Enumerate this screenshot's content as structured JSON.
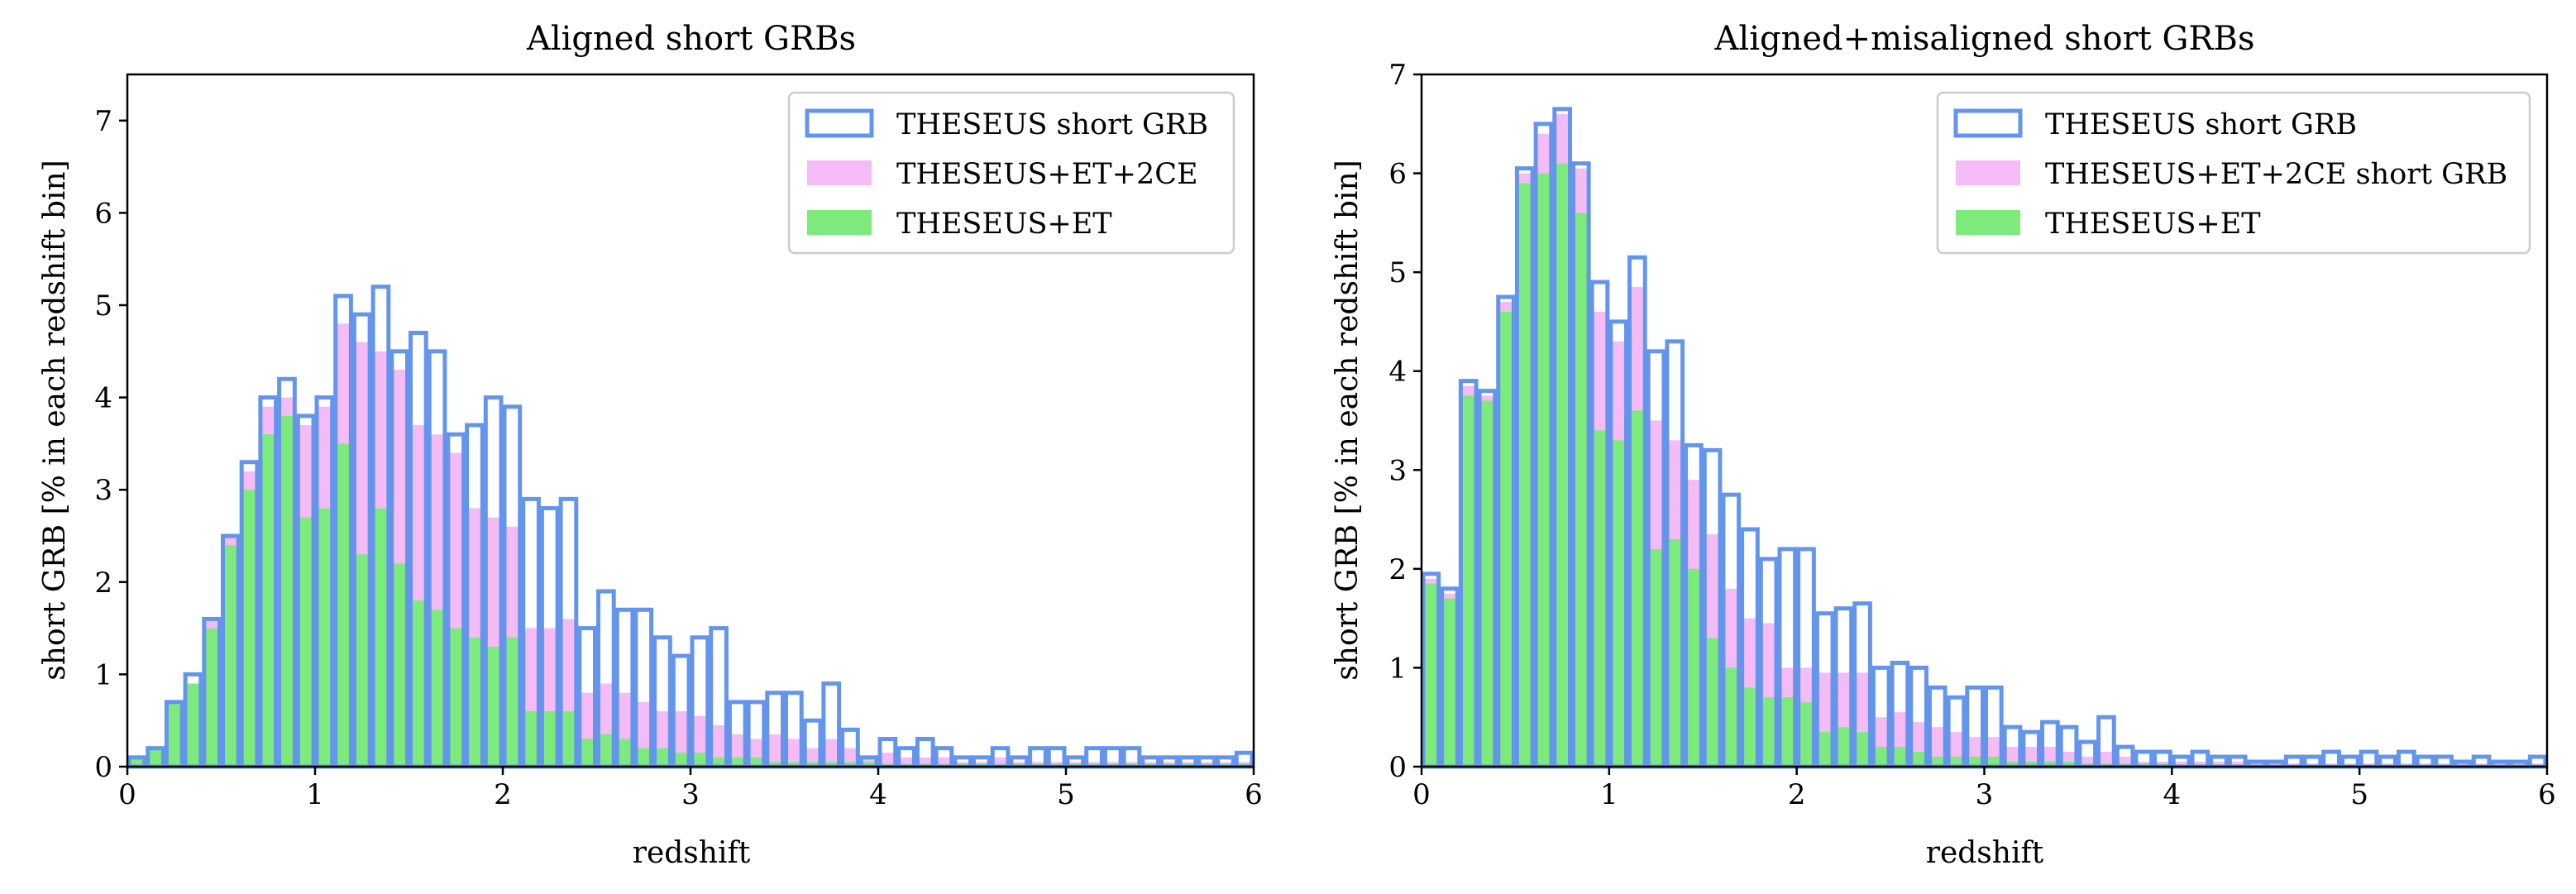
{
  "chart_data": [
    {
      "type": "bar",
      "title": "Aligned short GRBs",
      "xlabel": "redshift",
      "ylabel": "short GRB [% in each redshift bin]",
      "xlim": [
        0,
        6
      ],
      "ylim": [
        0,
        7.5
      ],
      "xticks": [
        0,
        1,
        2,
        3,
        4,
        5,
        6
      ],
      "yticks": [
        0,
        1,
        2,
        3,
        4,
        5,
        6,
        7
      ],
      "bin_width": 0.1,
      "legend_position": "top-right",
      "colors": {
        "theseus": "#6495ED",
        "theseus_et_2ce": "#F4BBF4",
        "theseus_et": "#7CEB7C"
      },
      "series": [
        {
          "key": "theseus",
          "name": "THESEUS short GRB",
          "style": "step",
          "values": [
            0.1,
            0.2,
            0.7,
            1.0,
            1.6,
            2.5,
            3.3,
            4.0,
            4.2,
            3.8,
            4.0,
            5.1,
            4.9,
            5.2,
            4.5,
            4.7,
            4.5,
            3.6,
            3.7,
            4.0,
            3.9,
            2.9,
            2.8,
            2.9,
            1.5,
            1.9,
            1.7,
            1.7,
            1.4,
            1.2,
            1.4,
            1.5,
            0.7,
            0.7,
            0.8,
            0.8,
            0.5,
            0.9,
            0.4,
            0.1,
            0.3,
            0.2,
            0.3,
            0.2,
            0.1,
            0.1,
            0.2,
            0.1,
            0.2,
            0.2,
            0.1,
            0.2,
            0.2,
            0.2,
            0.1,
            0.1,
            0.1,
            0.1,
            0.1,
            0.15
          ]
        },
        {
          "key": "theseus_et_2ce",
          "name": "THESEUS+ET+2CE",
          "style": "fill",
          "values": [
            0.1,
            0.2,
            0.7,
            0.9,
            1.6,
            2.5,
            3.2,
            3.9,
            4.0,
            3.7,
            3.9,
            4.8,
            4.6,
            4.5,
            4.3,
            3.7,
            3.6,
            3.4,
            2.8,
            2.7,
            2.6,
            1.5,
            1.5,
            1.6,
            0.8,
            0.9,
            0.8,
            0.7,
            0.6,
            0.6,
            0.55,
            0.45,
            0.35,
            0.3,
            0.35,
            0.3,
            0.2,
            0.3,
            0.2,
            0.1,
            0.15,
            0.1,
            0.1,
            0.1,
            0.05,
            0.05,
            0.1,
            0.05,
            0.05,
            0.05,
            0.05,
            0.05,
            0.05,
            0.05,
            0.05,
            0.05,
            0.05,
            0.05,
            0.05,
            0.05
          ]
        },
        {
          "key": "theseus_et",
          "name": "THESEUS+ET",
          "style": "fill",
          "values": [
            0.1,
            0.2,
            0.7,
            0.9,
            1.5,
            2.4,
            3.0,
            3.6,
            3.8,
            2.7,
            2.8,
            3.5,
            2.3,
            2.8,
            2.2,
            1.8,
            1.7,
            1.5,
            1.4,
            1.3,
            1.4,
            0.6,
            0.6,
            0.6,
            0.3,
            0.35,
            0.3,
            0.2,
            0.2,
            0.15,
            0.15,
            0.1,
            0.1,
            0.1,
            0.05,
            0.05,
            0.05,
            0.05,
            0.05,
            0.05,
            0.03,
            0.03,
            0.03,
            0.03,
            0.03,
            0.03,
            0.03,
            0.03,
            0.03,
            0.03,
            0.03,
            0.03,
            0.03,
            0.03,
            0.03,
            0.03,
            0.03,
            0.03,
            0.03,
            0.03
          ]
        }
      ]
    },
    {
      "type": "bar",
      "title": "Aligned+misaligned short GRBs",
      "xlabel": "redshift",
      "ylabel": "short GRB [% in each redshift bin]",
      "xlim": [
        0,
        6
      ],
      "ylim": [
        0,
        7
      ],
      "xticks": [
        0,
        1,
        2,
        3,
        4,
        5,
        6
      ],
      "yticks": [
        0,
        1,
        2,
        3,
        4,
        5,
        6,
        7
      ],
      "bin_width": 0.1,
      "legend_position": "top-right",
      "colors": {
        "theseus": "#6495ED",
        "theseus_et_2ce": "#F4BBF4",
        "theseus_et": "#7CEB7C"
      },
      "series": [
        {
          "key": "theseus",
          "name": "THESEUS short GRB",
          "style": "step",
          "values": [
            1.95,
            1.8,
            3.9,
            3.8,
            4.75,
            6.05,
            6.5,
            6.65,
            6.1,
            4.9,
            4.5,
            5.15,
            4.2,
            4.3,
            3.25,
            3.2,
            2.75,
            2.4,
            2.1,
            2.2,
            2.2,
            1.55,
            1.6,
            1.65,
            1.0,
            1.05,
            1.0,
            0.8,
            0.7,
            0.8,
            0.8,
            0.4,
            0.35,
            0.45,
            0.4,
            0.25,
            0.5,
            0.2,
            0.15,
            0.15,
            0.1,
            0.15,
            0.1,
            0.1,
            0.05,
            0.05,
            0.1,
            0.1,
            0.15,
            0.1,
            0.15,
            0.1,
            0.15,
            0.1,
            0.1,
            0.05,
            0.1,
            0.05,
            0.05,
            0.1
          ]
        },
        {
          "key": "theseus_et_2ce",
          "name": "THESEUS+ET+2CE short GRB",
          "style": "fill",
          "values": [
            1.9,
            1.75,
            3.85,
            3.75,
            4.7,
            6.0,
            6.4,
            6.6,
            6.05,
            4.6,
            4.3,
            4.85,
            3.5,
            3.3,
            2.9,
            2.35,
            1.8,
            1.5,
            1.45,
            1.0,
            1.0,
            0.95,
            0.95,
            0.95,
            0.5,
            0.55,
            0.45,
            0.4,
            0.35,
            0.3,
            0.3,
            0.2,
            0.2,
            0.2,
            0.15,
            0.1,
            0.15,
            0.1,
            0.05,
            0.05,
            0.05,
            0.05,
            0.05,
            0.05,
            0.03,
            0.03,
            0.03,
            0.03,
            0.03,
            0.03,
            0.03,
            0.03,
            0.03,
            0.03,
            0.03,
            0.03,
            0.03,
            0.03,
            0.03,
            0.03
          ]
        },
        {
          "key": "theseus_et",
          "name": "THESEUS+ET",
          "style": "fill",
          "values": [
            1.85,
            1.7,
            3.75,
            3.7,
            4.6,
            5.9,
            6.0,
            6.1,
            5.6,
            3.4,
            3.3,
            3.6,
            2.2,
            2.3,
            2.0,
            1.3,
            1.0,
            0.8,
            0.7,
            0.7,
            0.65,
            0.35,
            0.4,
            0.35,
            0.2,
            0.2,
            0.15,
            0.1,
            0.1,
            0.1,
            0.1,
            0.05,
            0.05,
            0.05,
            0.05,
            0.03,
            0.03,
            0.03,
            0.03,
            0.03,
            0.02,
            0.02,
            0.02,
            0.02,
            0.02,
            0.02,
            0.02,
            0.02,
            0.02,
            0.02,
            0.02,
            0.02,
            0.02,
            0.02,
            0.02,
            0.02,
            0.02,
            0.02,
            0.02,
            0.02
          ]
        }
      ]
    }
  ]
}
